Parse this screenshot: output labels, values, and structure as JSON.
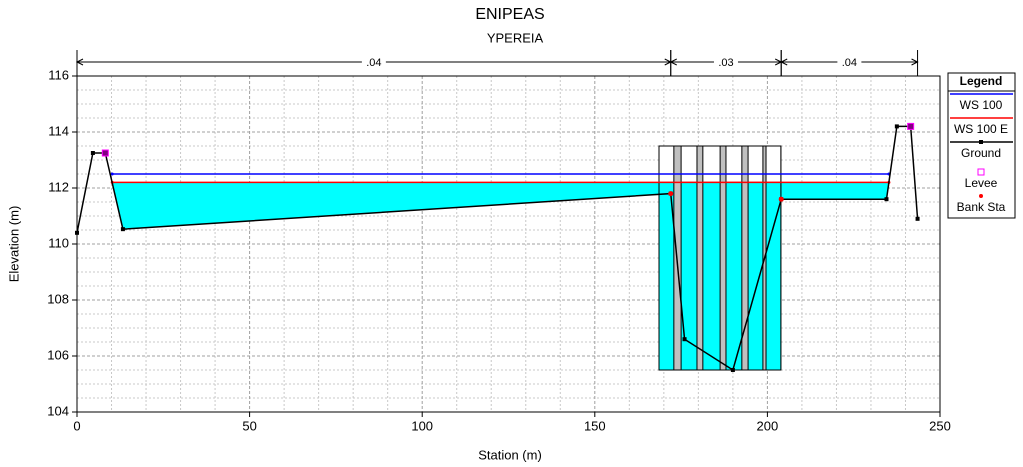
{
  "chart_data": {
    "type": "cross-section",
    "title": "ENIPEAS",
    "subtitle": "YPEREIA",
    "x_label": "Station (m)",
    "y_label": "Elevation (m)",
    "xlim": [
      0,
      250
    ],
    "ylim": [
      104,
      116
    ],
    "xticks": [
      0,
      50,
      100,
      150,
      200,
      250
    ],
    "yticks": [
      104,
      106,
      108,
      110,
      112,
      114,
      116
    ],
    "grid": true,
    "legend_title": "Legend",
    "legend": "right",
    "water_color": "#00ffff",
    "series": [
      {
        "name": "WS 100",
        "color": "#0000ff",
        "x": [
          10.2,
          235.2
        ],
        "values": [
          112.5,
          112.5
        ]
      },
      {
        "name": "WS 100 E",
        "color": "#ff0000",
        "x": [
          10.2,
          235.2
        ],
        "values": [
          112.2,
          112.2
        ]
      },
      {
        "name": "Ground",
        "color": "#000000",
        "x": [
          0,
          4.6,
          8.2,
          13.3,
          172,
          176,
          190,
          204,
          234.5,
          237.5,
          241.5,
          243.5
        ],
        "values": [
          110.4,
          113.25,
          113.25,
          110.53,
          111.8,
          106.6,
          105.5,
          111.6,
          111.6,
          114.2,
          114.2,
          110.9
        ]
      },
      {
        "name": "Levee",
        "color": "#ff00ff",
        "x": [
          8.2,
          241.5
        ],
        "values": [
          113.25,
          114.2
        ]
      },
      {
        "name": "Bank Sta",
        "color": "#ff0000",
        "x": [
          172,
          204
        ],
        "values": [
          111.8,
          111.6
        ]
      }
    ],
    "bridge": {
      "deck_top": 113.5,
      "opening_bottom": 105.5,
      "color": "#c0c0c0",
      "openings": [
        [
          168.6,
          172.9
        ],
        [
          175.0,
          179.6
        ],
        [
          181.3,
          186.3
        ],
        [
          188.0,
          192.6
        ],
        [
          194.4,
          198.7
        ],
        [
          199.6,
          203.9
        ]
      ]
    },
    "mannings_n": [
      {
        "label": ".04",
        "from": 0,
        "to": 172
      },
      {
        "label": ".03",
        "from": 172,
        "to": 204
      },
      {
        "label": ".04",
        "from": 204,
        "to": 243.5
      }
    ]
  }
}
